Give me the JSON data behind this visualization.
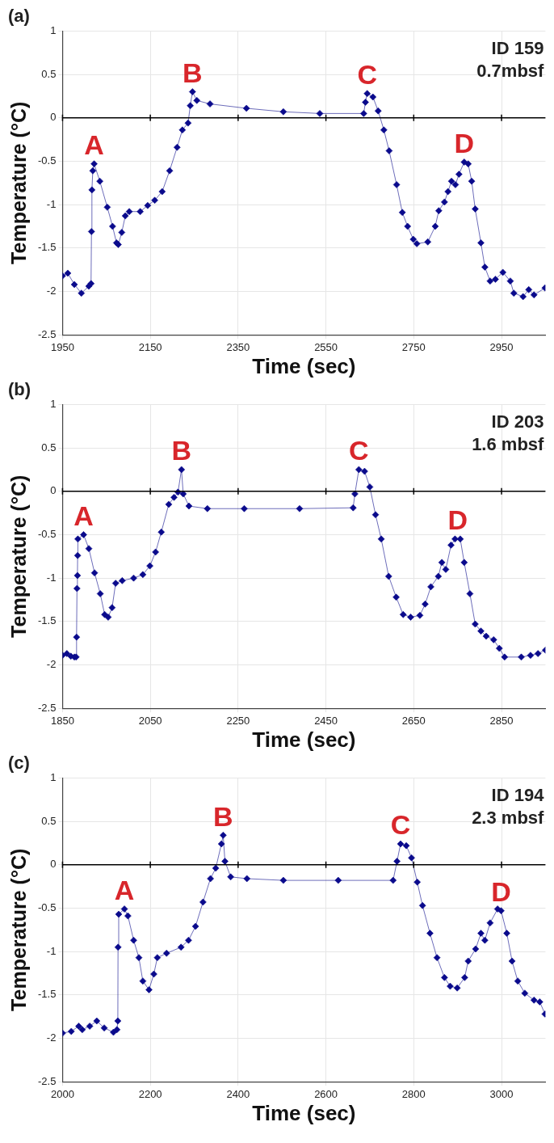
{
  "chart_data": [
    {
      "type": "line",
      "title": "(a)",
      "xlabel": "Time (sec)",
      "ylabel": "Temperature (°C)",
      "xlim": [
        1950,
        3050
      ],
      "xticks": [
        1950,
        2150,
        2350,
        2550,
        2750,
        2950
      ],
      "ylim": [
        -2.5,
        1
      ],
      "yticks": [
        -2.5,
        -2,
        -1.5,
        -1,
        -0.5,
        0,
        0.5,
        1
      ],
      "grid": true,
      "marker": "diamond",
      "line_style": "solid",
      "ref_lines": [
        {
          "axis": "y",
          "value": 0
        }
      ],
      "annotations": [
        "ID 159",
        "0.7mbsf",
        {
          "text": "A",
          "x": 2022,
          "y": -0.53
        },
        {
          "text": "B",
          "x": 2246,
          "y": 0.3
        },
        {
          "text": "C",
          "x": 2644,
          "y": 0.28
        },
        {
          "text": "D",
          "x": 2865,
          "y": -0.51
        }
      ],
      "series": [
        {
          "color": "#0a0a8c",
          "x": [
            1950,
            1962,
            1977,
            1993,
            2010,
            2015,
            2016,
            2017,
            2019,
            2022,
            2035,
            2052,
            2064,
            2073,
            2077,
            2085,
            2093,
            2102,
            2127,
            2144,
            2160,
            2177,
            2194,
            2211,
            2223,
            2236,
            2241,
            2246,
            2256,
            2286,
            2369,
            2453,
            2536,
            2636,
            2640,
            2644,
            2657,
            2669,
            2682,
            2694,
            2711,
            2724,
            2736,
            2749,
            2757,
            2782,
            2799,
            2807,
            2820,
            2828,
            2836,
            2845,
            2853,
            2865,
            2874,
            2882,
            2890,
            2903,
            2912,
            2924,
            2936,
            2953,
            2970,
            2978,
            2999,
            3012,
            3024,
            3049
          ],
          "values": [
            -1.82,
            -1.79,
            -1.92,
            -2.02,
            -1.94,
            -1.91,
            -1.31,
            -0.83,
            -0.61,
            -0.53,
            -0.73,
            -1.03,
            -1.25,
            -1.44,
            -1.46,
            -1.32,
            -1.13,
            -1.08,
            -1.08,
            -1.01,
            -0.95,
            -0.85,
            -0.61,
            -0.34,
            -0.14,
            -0.06,
            0.14,
            0.3,
            0.2,
            0.16,
            0.11,
            0.07,
            0.05,
            0.05,
            0.18,
            0.28,
            0.24,
            0.08,
            -0.14,
            -0.38,
            -0.77,
            -1.09,
            -1.25,
            -1.4,
            -1.45,
            -1.43,
            -1.25,
            -1.07,
            -0.97,
            -0.85,
            -0.73,
            -0.77,
            -0.65,
            -0.51,
            -0.53,
            -0.73,
            -1.05,
            -1.44,
            -1.72,
            -1.88,
            -1.86,
            -1.78,
            -1.88,
            -2.02,
            -2.06,
            -1.98,
            -2.04,
            -1.96
          ]
        }
      ]
    },
    {
      "type": "line",
      "title": "(b)",
      "xlabel": "Time (sec)",
      "ylabel": "Temperature (°C)",
      "xlim": [
        1850,
        2950
      ],
      "xticks": [
        1850,
        2050,
        2250,
        2450,
        2650,
        2850
      ],
      "ylim": [
        -2.5,
        1
      ],
      "yticks": [
        -2.5,
        -2,
        -1.5,
        -1,
        -0.5,
        0,
        0.5,
        1
      ],
      "grid": true,
      "marker": "diamond",
      "line_style": "solid",
      "ref_lines": [
        {
          "axis": "y",
          "value": 0
        }
      ],
      "annotations": [
        "ID 203",
        "1.6 mbsf",
        {
          "text": "A",
          "x": 1898,
          "y": -0.5
        },
        {
          "text": "B",
          "x": 2121,
          "y": 0.25
        },
        {
          "text": "C",
          "x": 2525,
          "y": 0.25
        },
        {
          "text": "D",
          "x": 2750,
          "y": -0.55
        }
      ],
      "series": [
        {
          "color": "#0a0a8c",
          "x": [
            1850,
            1860,
            1869,
            1877,
            1881,
            1882,
            1883,
            1884,
            1884.5,
            1885,
            1898,
            1910,
            1923,
            1936,
            1946,
            1954,
            1963,
            1971,
            1986,
            2012,
            2033,
            2049,
            2062,
            2075,
            2092,
            2104,
            2113,
            2121,
            2125,
            2138,
            2180,
            2264,
            2390,
            2512,
            2516,
            2525,
            2538,
            2550,
            2563,
            2576,
            2593,
            2610,
            2626,
            2643,
            2664,
            2676,
            2689,
            2706,
            2714,
            2723,
            2735,
            2744,
            2756,
            2765,
            2778,
            2790,
            2803,
            2815,
            2832,
            2845,
            2857,
            2895,
            2916,
            2933,
            2950
          ],
          "values": [
            -1.89,
            -1.87,
            -1.9,
            -1.91,
            -1.91,
            -1.68,
            -1.12,
            -0.97,
            -0.74,
            -0.55,
            -0.5,
            -0.66,
            -0.94,
            -1.18,
            -1.42,
            -1.45,
            -1.34,
            -1.06,
            -1.03,
            -1,
            -0.96,
            -0.86,
            -0.7,
            -0.47,
            -0.15,
            -0.07,
            -0.01,
            0.25,
            -0.03,
            -0.17,
            -0.2,
            -0.2,
            -0.2,
            -0.19,
            -0.03,
            0.25,
            0.23,
            0.05,
            -0.27,
            -0.55,
            -0.98,
            -1.22,
            -1.42,
            -1.45,
            -1.43,
            -1.3,
            -1.1,
            -0.98,
            -0.82,
            -0.9,
            -0.62,
            -0.55,
            -0.55,
            -0.82,
            -1.18,
            -1.53,
            -1.61,
            -1.67,
            -1.71,
            -1.81,
            -1.91,
            -1.91,
            -1.89,
            -1.87,
            -1.83
          ]
        }
      ]
    },
    {
      "type": "line",
      "title": "(c)",
      "xlabel": "Time (sec)",
      "ylabel": "Temperature (°C)",
      "xlim": [
        2000,
        3100
      ],
      "xticks": [
        2000,
        2200,
        2400,
        2600,
        2800,
        3000
      ],
      "ylim": [
        -2.5,
        1
      ],
      "yticks": [
        -2.5,
        -2,
        -1.5,
        -1,
        -0.5,
        0,
        0.5,
        1
      ],
      "grid": true,
      "marker": "diamond",
      "line_style": "solid",
      "ref_lines": [
        {
          "axis": "y",
          "value": 0
        }
      ],
      "annotations": [
        "ID 194",
        "2.3 mbsf",
        {
          "text": "A",
          "x": 2141,
          "y": -0.51
        },
        {
          "text": "B",
          "x": 2366,
          "y": 0.34
        },
        {
          "text": "C",
          "x": 2770,
          "y": 0.24
        },
        {
          "text": "D",
          "x": 2999,
          "y": -0.53
        }
      ],
      "series": [
        {
          "color": "#0a0a8c",
          "x": [
            2000,
            2020,
            2037,
            2045,
            2062,
            2078,
            2095,
            2116,
            2124,
            2126,
            2126.5,
            2128,
            2141,
            2149,
            2162,
            2174,
            2183,
            2197,
            2208,
            2216,
            2237,
            2270,
            2287,
            2303,
            2320,
            2337,
            2349,
            2362,
            2366,
            2370,
            2383,
            2420,
            2503,
            2628,
            2753,
            2762,
            2770,
            2783,
            2795,
            2808,
            2820,
            2837,
            2853,
            2870,
            2883,
            2899,
            2916,
            2924,
            2941,
            2953,
            2962,
            2974,
            2991,
            2999,
            3012,
            3024,
            3037,
            3053,
            3074,
            3087,
            3099
          ],
          "values": [
            -1.94,
            -1.92,
            -1.86,
            -1.9,
            -1.86,
            -1.8,
            -1.88,
            -1.93,
            -1.9,
            -1.8,
            -0.95,
            -0.57,
            -0.51,
            -0.59,
            -0.87,
            -1.07,
            -1.34,
            -1.44,
            -1.26,
            -1.07,
            -1.02,
            -0.95,
            -0.87,
            -0.71,
            -0.43,
            -0.16,
            -0.04,
            0.24,
            0.34,
            0.04,
            -0.14,
            -0.16,
            -0.18,
            -0.18,
            -0.18,
            0.04,
            0.24,
            0.22,
            0.08,
            -0.2,
            -0.47,
            -0.79,
            -1.07,
            -1.3,
            -1.4,
            -1.42,
            -1.3,
            -1.11,
            -0.97,
            -0.79,
            -0.87,
            -0.67,
            -0.51,
            -0.53,
            -0.79,
            -1.11,
            -1.34,
            -1.48,
            -1.56,
            -1.58,
            -1.72
          ]
        }
      ]
    }
  ]
}
